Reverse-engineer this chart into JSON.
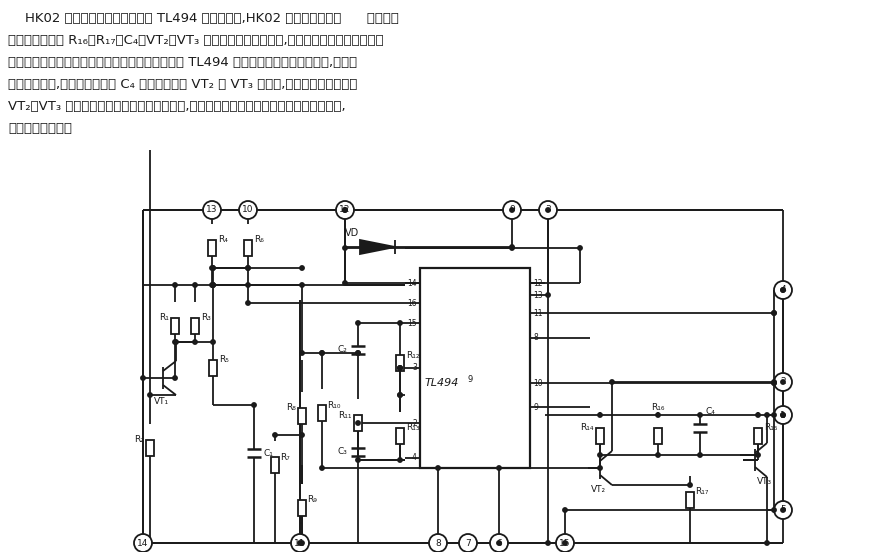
{
  "bg_color": "#ffffff",
  "line_color": "#1a1a1a",
  "fig_width": 8.85,
  "fig_height": 5.52,
  "dpi": 100,
  "text_lines": [
    "    HK02 以脉宽调制控制集成电路 TL494 为核心构成,HK02 的内部结构如图      所示。器",
    "件内部设计了由 R₁₆、R₁₇、C₄、VT₂、VT₃ 等构成的快速驱动电路,以保证在较高工作频率下双",
    "极型晶体管可靠工作。快速驱动电路的原理是：当 TL494 内部输出管从饱和到截止时,集电极",
    "电压迅速升高,此电压通过电容 C₄ 耦合至晶体管 VT₂ 或 VT₃ 的基极,使其迅速饱和。由于",
    "VT₂、VT₃ 管集电极与外接功率管的基极相连,因此可以将外接功率管的基极电流迅速抽走,",
    "加快其截止速度。"
  ]
}
